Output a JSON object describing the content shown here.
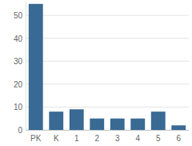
{
  "chart_data": {
    "type": "bar",
    "categories": [
      "PK",
      "K",
      "1",
      "2",
      "3",
      "4",
      "5",
      "6"
    ],
    "values": [
      55,
      8,
      9,
      5,
      5,
      5,
      8,
      2
    ],
    "color": "#386a94",
    "ylim": [
      0,
      56
    ],
    "yticks": [
      0,
      10,
      20,
      30,
      40,
      50
    ],
    "grid": true
  }
}
